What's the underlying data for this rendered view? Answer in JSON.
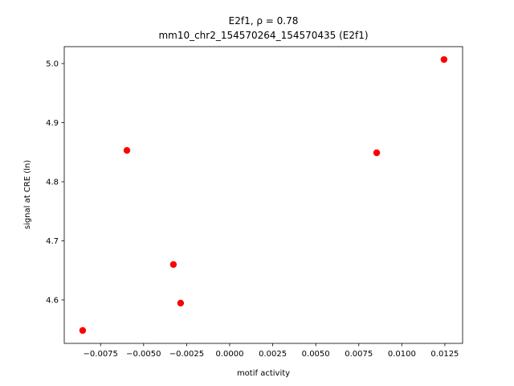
{
  "chart_data": {
    "type": "scatter",
    "title_lines": [
      "E2f1, ρ = 0.78",
      "mm10_chr2_154570264_154570435 (E2f1)"
    ],
    "xlabel": "motif activity",
    "ylabel": "signal at CRE (ln)",
    "series": [
      {
        "color": "#ff0000",
        "x": [
          -0.00854,
          -0.00597,
          -0.00327,
          -0.00285,
          0.00854,
          0.01245
        ],
        "values": [
          4.5483,
          4.853,
          4.66,
          4.5946,
          4.849,
          5.0068
        ]
      }
    ],
    "xlim": [
      -0.00961,
      0.01353
    ],
    "ylim": [
      4.5265,
      5.0286
    ],
    "xticks": [
      {
        "value": -0.0075,
        "label": "−0.0075"
      },
      {
        "value": -0.005,
        "label": "−0.0050"
      },
      {
        "value": -0.0025,
        "label": "−0.0025"
      },
      {
        "value": 0,
        "label": "0.0000"
      },
      {
        "value": 0.0025,
        "label": "0.0025"
      },
      {
        "value": 0.005,
        "label": "0.0050"
      },
      {
        "value": 0.0075,
        "label": "0.0075"
      },
      {
        "value": 0.01,
        "label": "0.0100"
      },
      {
        "value": 0.0125,
        "label": "0.0125"
      }
    ],
    "yticks": [
      4.6,
      4.7,
      4.8,
      4.9,
      {
        "value": 5.0,
        "label": "5.0"
      }
    ]
  }
}
